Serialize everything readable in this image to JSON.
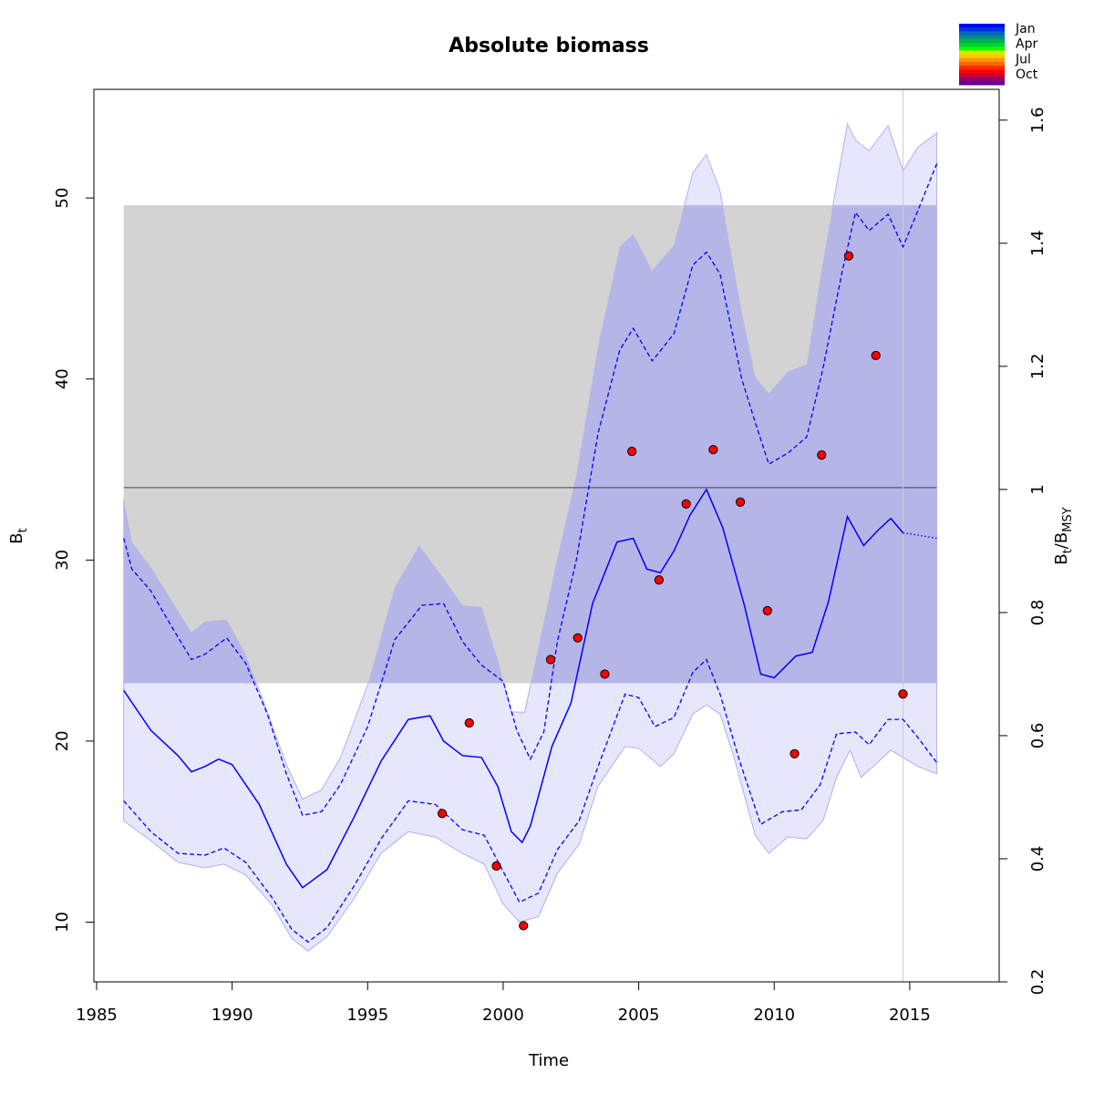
{
  "chart_data": {
    "type": "line",
    "title": "Absolute biomass",
    "xlabel": "Time",
    "ylabel": "B",
    "ylabel_sub": "t",
    "y2label_main_1": "B",
    "y2label_sub_1": "t",
    "y2label_sep": "/",
    "y2label_main_2": "B",
    "y2label_sub_2": "MSY",
    "xlim": [
      1984.9,
      2018.3
    ],
    "ylim": [
      6.7,
      56.0
    ],
    "y2lim": [
      0.2,
      1.65
    ],
    "bmsy": 34.0,
    "x_ticks": [
      "1985",
      "1990",
      "1995",
      "2000",
      "2005",
      "2010",
      "2015"
    ],
    "y_ticks": [
      "10",
      "20",
      "30",
      "40",
      "50"
    ],
    "y2_ticks": [
      "0.2",
      "0.4",
      "0.6",
      "0.8",
      "1",
      "1.2",
      "1.4",
      "1.6"
    ],
    "bmsy_band": {
      "x": [
        1986.0,
        2016.0
      ],
      "y": [
        23.2,
        49.6
      ],
      "color": "#d3d3d3"
    },
    "vline_x": 2014.75,
    "colors": {
      "main": "#0000ff",
      "band_outer": "#e6e6fc",
      "band_inner": "#b5b5e8",
      "points": "#ff0000",
      "grey_band": "#d3d3d3"
    },
    "series": [
      {
        "role": "median",
        "x": [
          1986,
          1987,
          1988,
          1988.5,
          1989,
          1989.5,
          1990,
          1991,
          1992,
          1992.6,
          1993.5,
          1994.5,
          1995.5,
          1996.5,
          1997.3,
          1997.8,
          1998.5,
          1999.2,
          1999.8,
          2000.3,
          2000.7,
          2001,
          2001.8,
          2002.5,
          2003.3,
          2004.2,
          2004.8,
          2005.3,
          2005.8,
          2006.3,
          2006.9,
          2007.5,
          2008.1,
          2008.9,
          2009.5,
          2010,
          2010.8,
          2011.4,
          2012,
          2012.7,
          2013.3,
          2013.8,
          2014.3,
          2014.75,
          2015.2,
          2016
        ],
        "y": [
          22.8,
          20.6,
          19.2,
          18.3,
          18.6,
          19.0,
          18.7,
          16.5,
          13.2,
          11.9,
          12.9,
          15.8,
          18.9,
          21.2,
          21.4,
          20.0,
          19.2,
          19.1,
          17.5,
          15.0,
          14.4,
          15.3,
          19.7,
          22.1,
          27.6,
          31.0,
          31.2,
          29.5,
          29.3,
          30.5,
          32.5,
          33.9,
          31.8,
          27.5,
          23.7,
          23.5,
          24.7,
          24.9,
          27.7,
          32.4,
          30.8,
          31.6,
          32.3,
          31.5,
          31.4,
          31.2
        ]
      },
      {
        "role": "lower-dashed",
        "x": [
          1986,
          1987,
          1988,
          1989,
          1989.7,
          1990.5,
          1991.5,
          1992.2,
          1992.8,
          1993.5,
          1994.5,
          1995.5,
          1996.5,
          1997.5,
          1998.5,
          1999.3,
          2000,
          2000.6,
          2001.3,
          2002,
          2002.8,
          2003.5,
          2004.5,
          2005,
          2005.6,
          2006.3,
          2007,
          2007.5,
          2008,
          2008.7,
          2009.5,
          2010.3,
          2011,
          2011.7,
          2012.3,
          2013,
          2013.5,
          2014.2,
          2014.75,
          2015.3,
          2016
        ],
        "y": [
          16.7,
          15.0,
          13.8,
          13.7,
          14.1,
          13.3,
          11.3,
          9.6,
          8.9,
          9.7,
          12.0,
          14.6,
          16.7,
          16.5,
          15.1,
          14.8,
          12.8,
          11.1,
          11.6,
          14.0,
          15.6,
          18.6,
          22.6,
          22.4,
          20.8,
          21.3,
          23.8,
          24.5,
          22.6,
          19.0,
          15.4,
          16.1,
          16.2,
          17.6,
          20.4,
          20.5,
          19.8,
          21.2,
          21.2,
          20.2,
          18.8
        ]
      },
      {
        "role": "upper-dashed",
        "x": [
          1986,
          1986.3,
          1987,
          1987.7,
          1988.5,
          1989,
          1989.8,
          1990.5,
          1991.3,
          1992,
          1992.6,
          1993.3,
          1994,
          1995,
          1996,
          1997,
          1997.8,
          1998.5,
          1999.2,
          2000,
          2000.5,
          2001,
          2001.5,
          2002,
          2002.7,
          2003.5,
          2004.3,
          2004.8,
          2005.5,
          2006.3,
          2007,
          2007.5,
          2008,
          2008.8,
          2009.3,
          2009.8,
          2010.5,
          2011.2,
          2011.8,
          2012.5,
          2013,
          2013.5,
          2014.2,
          2014.75,
          2015.3,
          2016
        ],
        "y": [
          31.2,
          29.5,
          28.3,
          26.5,
          24.5,
          24.8,
          25.7,
          24.3,
          21.5,
          18.2,
          15.9,
          16.1,
          17.6,
          20.8,
          25.6,
          27.5,
          27.6,
          25.5,
          24.2,
          23.3,
          20.6,
          19.0,
          20.5,
          25.5,
          30.0,
          37.0,
          41.6,
          42.8,
          41.0,
          42.5,
          46.3,
          47.0,
          45.8,
          40.0,
          37.6,
          35.3,
          35.9,
          36.8,
          40.6,
          45.9,
          49.2,
          48.2,
          49.1,
          47.3,
          49.3,
          51.9
        ]
      },
      {
        "role": "outer-upper",
        "x": [
          1986,
          1986.3,
          1987,
          1988,
          1988.5,
          1989,
          1989.8,
          1990.5,
          1991.3,
          1992,
          1992.6,
          1993.3,
          1994,
          1995,
          1996,
          1996.9,
          1997.8,
          1998.5,
          1999.2,
          1999.8,
          2000.3,
          2000.8,
          2001.3,
          2002,
          2002.7,
          2003.5,
          2004.3,
          2004.8,
          2005.5,
          2006.3,
          2007,
          2007.5,
          2008,
          2008.8,
          2009.3,
          2009.8,
          2010.5,
          2011.2,
          2011.8,
          2012.7,
          2013,
          2013.5,
          2014.2,
          2014.75,
          2015.3,
          2016
        ],
        "y": [
          33.4,
          31.0,
          29.6,
          27.2,
          26.0,
          26.6,
          26.7,
          24.8,
          21.6,
          18.7,
          16.8,
          17.3,
          19.1,
          23.1,
          28.5,
          30.8,
          29.0,
          27.5,
          27.4,
          24.5,
          21.6,
          21.6,
          25.2,
          30.1,
          34.7,
          41.8,
          47.3,
          48.0,
          46.0,
          47.4,
          51.4,
          52.4,
          50.4,
          43.7,
          40.1,
          39.2,
          40.4,
          40.8,
          46.5,
          54.1,
          53.2,
          52.6,
          54.0,
          51.5,
          52.8,
          53.6
        ]
      },
      {
        "role": "outer-lower",
        "x": [
          1986,
          1987,
          1988,
          1989,
          1989.7,
          1990.5,
          1991.5,
          1992.2,
          1992.8,
          1993.5,
          1994.5,
          1995.5,
          1996.5,
          1997.5,
          1998.5,
          1999.3,
          2000,
          2000.6,
          2001.3,
          2002,
          2002.8,
          2003.5,
          2004.5,
          2005,
          2005.8,
          2006.3,
          2007,
          2007.5,
          2008,
          2008.5,
          2009.3,
          2009.8,
          2010.5,
          2011.2,
          2011.8,
          2012.3,
          2012.8,
          2013.2,
          2013.8,
          2014.3,
          2014.75,
          2015.3,
          2016
        ],
        "y": [
          15.6,
          14.5,
          13.3,
          13.0,
          13.2,
          12.6,
          10.9,
          9.1,
          8.4,
          9.2,
          11.3,
          13.8,
          15.0,
          14.7,
          13.8,
          13.2,
          11.0,
          10.0,
          10.3,
          12.7,
          14.3,
          17.5,
          19.7,
          19.6,
          18.6,
          19.3,
          21.5,
          22.0,
          21.5,
          19.2,
          14.8,
          13.8,
          14.7,
          14.6,
          15.6,
          18.0,
          19.5,
          18.0,
          18.8,
          19.5,
          19.1,
          18.6,
          18.2
        ]
      }
    ],
    "observations": {
      "x": [
        1997.75,
        1998.75,
        1999.75,
        2000.75,
        2001.75,
        2002.75,
        2003.75,
        2004.75,
        2005.75,
        2006.75,
        2007.75,
        2008.75,
        2009.75,
        2010.75,
        2011.75,
        2012.75,
        2013.75,
        2014.75
      ],
      "y": [
        16.0,
        21.0,
        13.1,
        9.8,
        24.5,
        25.7,
        23.7,
        36.0,
        28.9,
        33.1,
        36.1,
        33.2,
        27.2,
        19.3,
        35.8,
        46.8,
        41.3,
        22.6
      ]
    },
    "legend": {
      "placement": "top-right",
      "labels": [
        "Jan",
        "Apr",
        "Jul",
        "Oct"
      ],
      "colors": [
        "#0000ff",
        "#0033e0",
        "#0066c8",
        "#008c80",
        "#00b050",
        "#00d030",
        "#00ff00",
        "#ccee00",
        "#ffc800",
        "#ff9600",
        "#ff6400",
        "#ff2a00",
        "#ff0000",
        "#cc0033",
        "#990066",
        "#660099"
      ]
    }
  }
}
